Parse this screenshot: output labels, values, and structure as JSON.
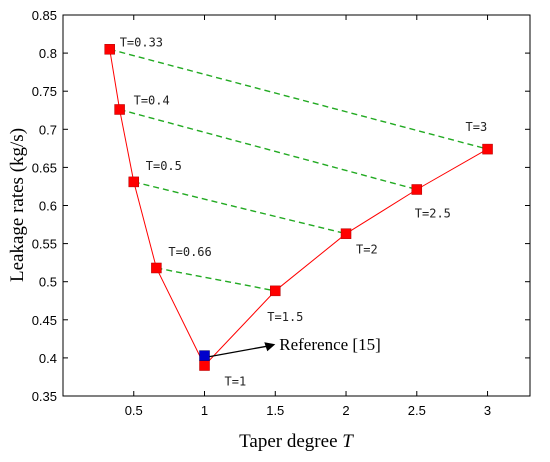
{
  "chart_data": {
    "type": "line",
    "xlabel": "Taper degree",
    "xlabel_var": "T",
    "ylabel": "Leakage rates (kg/s)",
    "xlim": [
      0,
      3.3
    ],
    "ylim": [
      0.35,
      0.85
    ],
    "xticks": [
      "0.5",
      "1",
      "1.5",
      "2",
      "2.5",
      "3"
    ],
    "yticks": [
      "0.35",
      "0.4",
      "0.45",
      "0.5",
      "0.55",
      "0.6",
      "0.65",
      "0.7",
      "0.75",
      "0.8",
      "0.85"
    ],
    "grid": false,
    "series": [
      {
        "marker_color": "#ff0000",
        "line_color": "#ff0000",
        "x": [
          0.33,
          0.4,
          0.5,
          0.66,
          1,
          1.5,
          2,
          2.5,
          3
        ],
        "y": [
          0.805,
          0.726,
          0.631,
          0.518,
          0.39,
          0.488,
          0.563,
          0.621,
          0.674
        ]
      }
    ],
    "pairs": [
      {
        "from": 0.33,
        "to": 3,
        "y1": 0.805,
        "y2": 0.674
      },
      {
        "from": 0.4,
        "to": 2.5,
        "y1": 0.726,
        "y2": 0.621
      },
      {
        "from": 0.5,
        "to": 2,
        "y1": 0.631,
        "y2": 0.563
      },
      {
        "from": 0.66,
        "to": 1.5,
        "y1": 0.518,
        "y2": 0.488
      }
    ],
    "pair_line_color": "#22aa22",
    "reference": {
      "x": 1,
      "y": 0.403,
      "label": "Reference [15]",
      "color": "#0000cc",
      "arrow_to": [
        1.5,
        0.418
      ]
    },
    "point_labels": [
      {
        "text": "T=0.33",
        "x": 0.33,
        "y": 0.805
      },
      {
        "text": "T=0.4",
        "x": 0.4,
        "y": 0.726
      },
      {
        "text": "T=0.5",
        "x": 0.5,
        "y": 0.631
      },
      {
        "text": "T=0.66",
        "x": 0.66,
        "y": 0.518
      },
      {
        "text": "T=1",
        "x": 1,
        "y": 0.39
      },
      {
        "text": "T=1.5",
        "x": 1.5,
        "y": 0.488
      },
      {
        "text": "T=2",
        "x": 2,
        "y": 0.563
      },
      {
        "text": "T=2.5",
        "x": 2.5,
        "y": 0.621
      },
      {
        "text": "T=3",
        "x": 3,
        "y": 0.674
      }
    ]
  }
}
